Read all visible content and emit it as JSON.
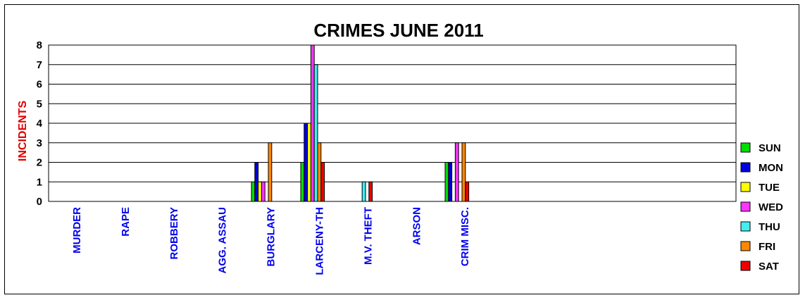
{
  "chart_data": {
    "type": "bar",
    "title": "CRIMES JUNE 2011",
    "xlabel": "",
    "ylabel": "INCIDENTS",
    "ylim": [
      0,
      8
    ],
    "yticks": [
      0,
      1,
      2,
      3,
      4,
      5,
      6,
      7,
      8
    ],
    "grid": true,
    "legend_position": "right",
    "categories": [
      "MURDER",
      "RAPE",
      "ROBBERY",
      "AGG. ASSAU",
      "BURGLARY",
      "LARCENY-TH",
      "M.V. THEFT",
      "ARSON",
      "CRIM MISC."
    ],
    "series": [
      {
        "name": "SUN",
        "color": "#00dd00",
        "values": [
          0,
          0,
          0,
          0,
          1,
          2,
          0,
          0,
          2
        ]
      },
      {
        "name": "MON",
        "color": "#0000dd",
        "values": [
          0,
          0,
          0,
          0,
          2,
          4,
          0,
          0,
          2
        ]
      },
      {
        "name": "TUE",
        "color": "#ffff00",
        "values": [
          0,
          0,
          0,
          0,
          1,
          4,
          0,
          0,
          0
        ]
      },
      {
        "name": "WED",
        "color": "#ff33ff",
        "values": [
          0,
          0,
          0,
          0,
          1,
          8,
          0,
          0,
          3
        ]
      },
      {
        "name": "THU",
        "color": "#44eeee",
        "values": [
          0,
          0,
          0,
          0,
          0,
          7,
          1,
          0,
          0
        ]
      },
      {
        "name": "FRI",
        "color": "#ff8800",
        "values": [
          0,
          0,
          0,
          0,
          3,
          3,
          0,
          0,
          3
        ]
      },
      {
        "name": "SAT",
        "color": "#ee0000",
        "values": [
          0,
          0,
          0,
          0,
          0,
          2,
          1,
          0,
          1
        ]
      }
    ]
  }
}
